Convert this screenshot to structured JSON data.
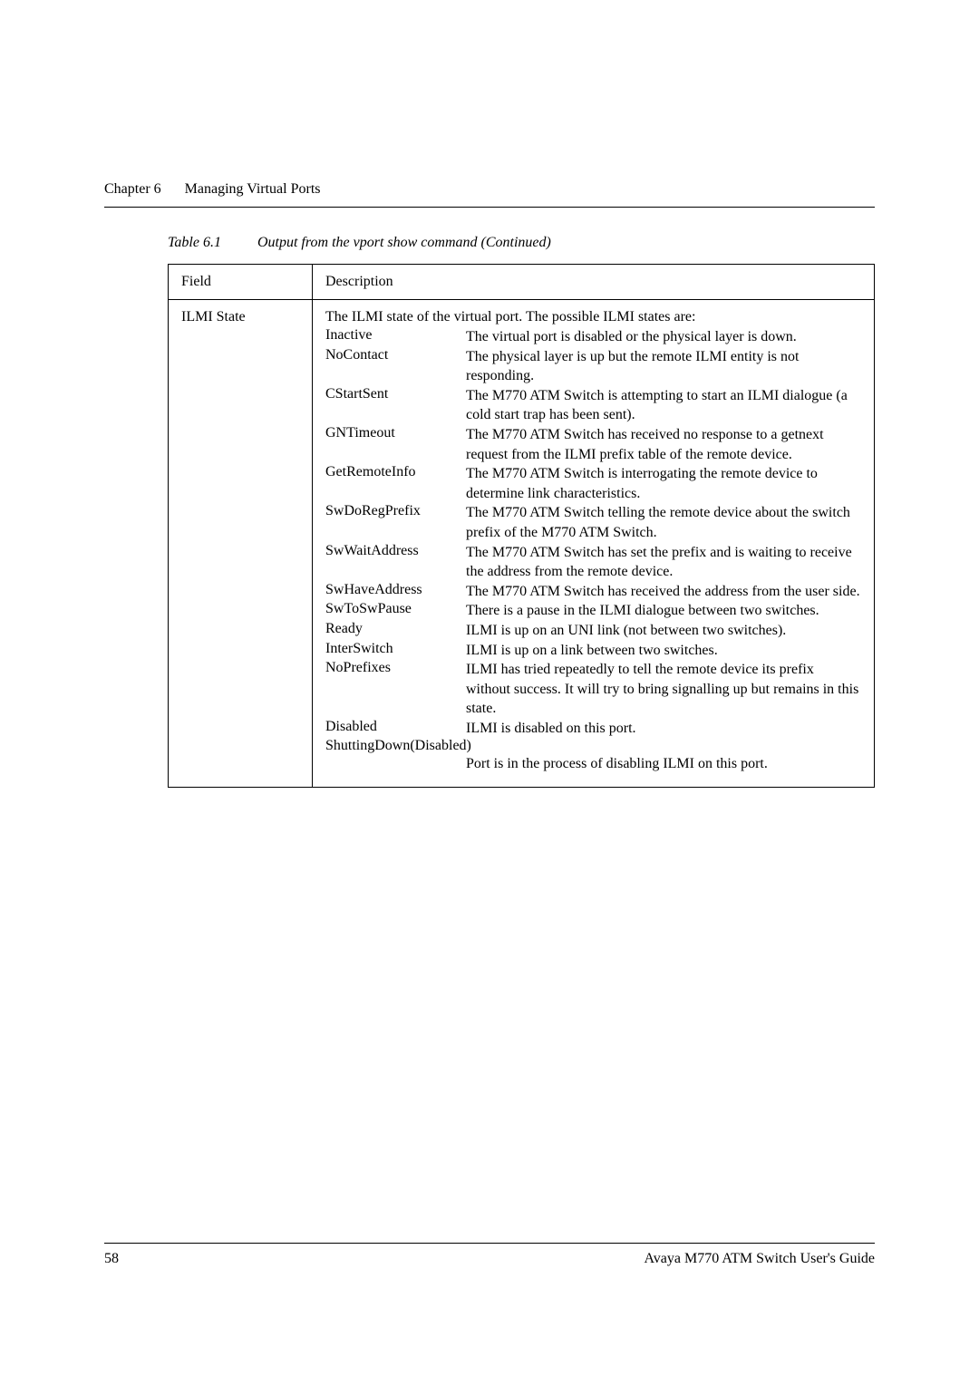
{
  "header": {
    "chapter_label": "Chapter 6",
    "chapter_title": "Managing Virtual Ports"
  },
  "caption": {
    "label": "Table 6.1",
    "text": "Output from the vport show command (Continued)"
  },
  "table": {
    "columns": {
      "field": "Field",
      "description": "Description"
    },
    "row": {
      "field": "ILMI State",
      "intro": "The ILMI state of the virtual port. The possible ILMI states are:",
      "states": [
        {
          "term": "Inactive",
          "def": "The virtual port is disabled or the physical layer is down."
        },
        {
          "term": "NoContact",
          "def": "The physical layer is up but the remote ILMI entity is not responding."
        },
        {
          "term": "CStartSent",
          "def": "The M770 ATM Switch is attempting to start an ILMI dialogue (a cold start trap has been sent)."
        },
        {
          "term": "GNTimeout",
          "def": "The M770 ATM Switch has received no response to a getnext request from the ILMI prefix table of the remote device."
        },
        {
          "term": "GetRemoteInfo",
          "def": "The M770 ATM Switch is interrogating the remote device to determine link characteristics."
        },
        {
          "term": "SwDoRegPrefix",
          "def": "The M770 ATM Switch telling the remote device about the switch prefix of the M770 ATM Switch."
        },
        {
          "term": "SwWaitAddress",
          "def": "The M770 ATM Switch has set the prefix and is waiting to receive the address from the remote device."
        },
        {
          "term": "SwHaveAddress",
          "def": "The M770 ATM Switch has received the address from the user side."
        },
        {
          "term": "SwToSwPause",
          "def": "There is a pause in the ILMI dialogue between two switches."
        },
        {
          "term": "Ready",
          "def": "ILMI is up on an UNI link (not between two switches)."
        },
        {
          "term": "InterSwitch",
          "def": "ILMI is up on a link between two switches."
        },
        {
          "term": "NoPrefixes",
          "def": "ILMI has tried repeatedly to tell the remote device its prefix without success. It will try to bring signalling up but remains in this state."
        },
        {
          "term": "Disabled",
          "def": "ILMI is disabled on this port."
        }
      ],
      "shutting_term": "ShuttingDown(Disabled)",
      "shutting_def": "Port is in the process of disabling ILMI on this port."
    }
  },
  "footer": {
    "page": "58",
    "doc": "Avaya M770 ATM Switch User's Guide"
  }
}
